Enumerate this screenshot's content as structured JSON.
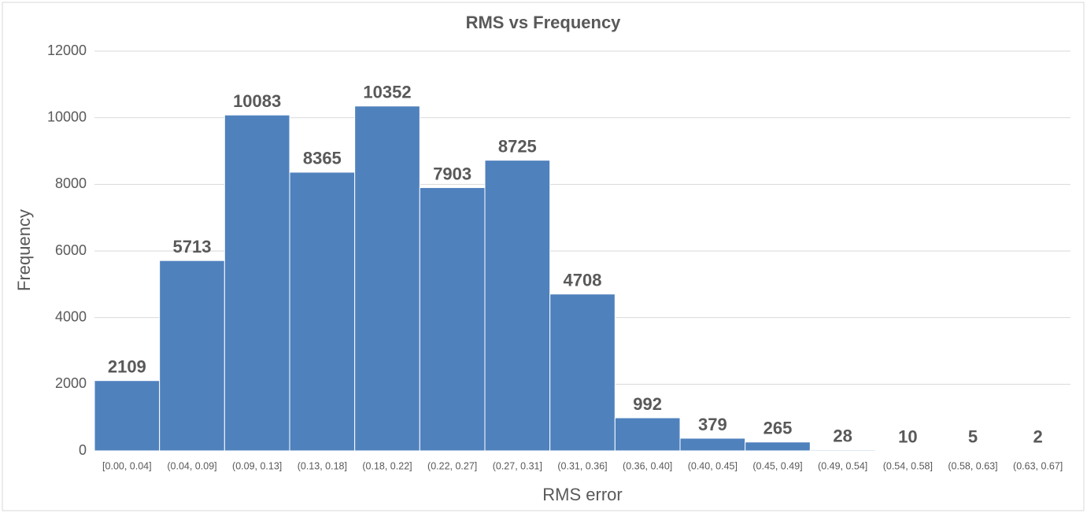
{
  "chart_data": {
    "type": "bar",
    "title": "RMS vs Frequency",
    "x_label": "RMS error",
    "y_label": "Frequency",
    "categories": [
      "[0.00, 0.04]",
      "(0.04, 0.09]",
      "(0.09, 0.13]",
      "(0.13, 0.18]",
      "(0.18, 0.22]",
      "(0.22, 0.27]",
      "(0.27, 0.31]",
      "(0.31, 0.36]",
      "(0.36, 0.40]",
      "(0.40, 0.45]",
      "(0.45, 0.49]",
      "(0.49, 0.54]",
      "(0.54, 0.58]",
      "(0.58, 0.63]",
      "(0.63, 0.67]"
    ],
    "values": [
      2109,
      5713,
      10083,
      8365,
      10352,
      7903,
      8725,
      4708,
      992,
      379,
      265,
      28,
      10,
      5,
      2
    ],
    "color": "#4f81bd",
    "ylim": [
      0,
      12000
    ],
    "yticks": [
      0,
      2000,
      4000,
      6000,
      8000,
      10000,
      12000
    ],
    "grid": true
  }
}
